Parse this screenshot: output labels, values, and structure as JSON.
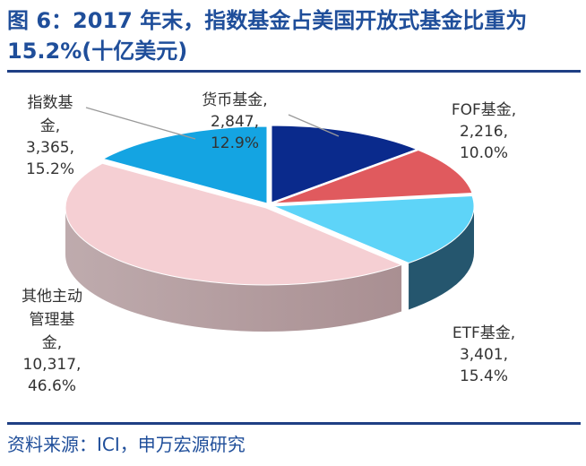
{
  "header": {
    "title": "图 6：2017 年末，指数基金占美国开放式基金比重为 15.2%(十亿美元)"
  },
  "footer": {
    "source": "资料来源：ICI，申万宏源研究"
  },
  "colors": {
    "title": "#1f4e9a",
    "rule": "#1f3f84",
    "money": "#0a2a8c",
    "fof": "#e05a5e",
    "etf": "#5ed4f8",
    "other": "#f5cfd3",
    "index": "#14a4e2"
  },
  "chart_data": {
    "type": "pie",
    "style": "3d-exploded",
    "title": "",
    "unit": "十亿美元",
    "slices": [
      {
        "key": "money",
        "name": "货币基金,",
        "value": 2847,
        "value_label": "2,847,",
        "pct_label": "12.9%",
        "color": "#0a2a8c",
        "side": "#051a5c"
      },
      {
        "key": "fof",
        "name": "FOF基金,",
        "value": 2216,
        "value_label": "2,216,",
        "pct_label": "10.0%",
        "color": "#e05a5e",
        "side": "#9a3034"
      },
      {
        "key": "etf",
        "name": "ETF基金,",
        "value": 3401,
        "value_label": "3,401,",
        "pct_label": "15.4%",
        "color": "#5ed4f8",
        "side": "#25566e"
      },
      {
        "key": "other",
        "name": [
          "其他主动",
          "管理基",
          "金,"
        ],
        "value": 10317,
        "value_label": "10,317,",
        "pct_label": "46.6%",
        "color": "#f5cfd3",
        "side": "#a98f92"
      },
      {
        "key": "index",
        "name": [
          "指数基",
          "金,"
        ],
        "value": 3365,
        "value_label": "3,365,",
        "pct_label": "15.2%",
        "color": "#14a4e2",
        "side": "#0b6a96"
      }
    ]
  }
}
